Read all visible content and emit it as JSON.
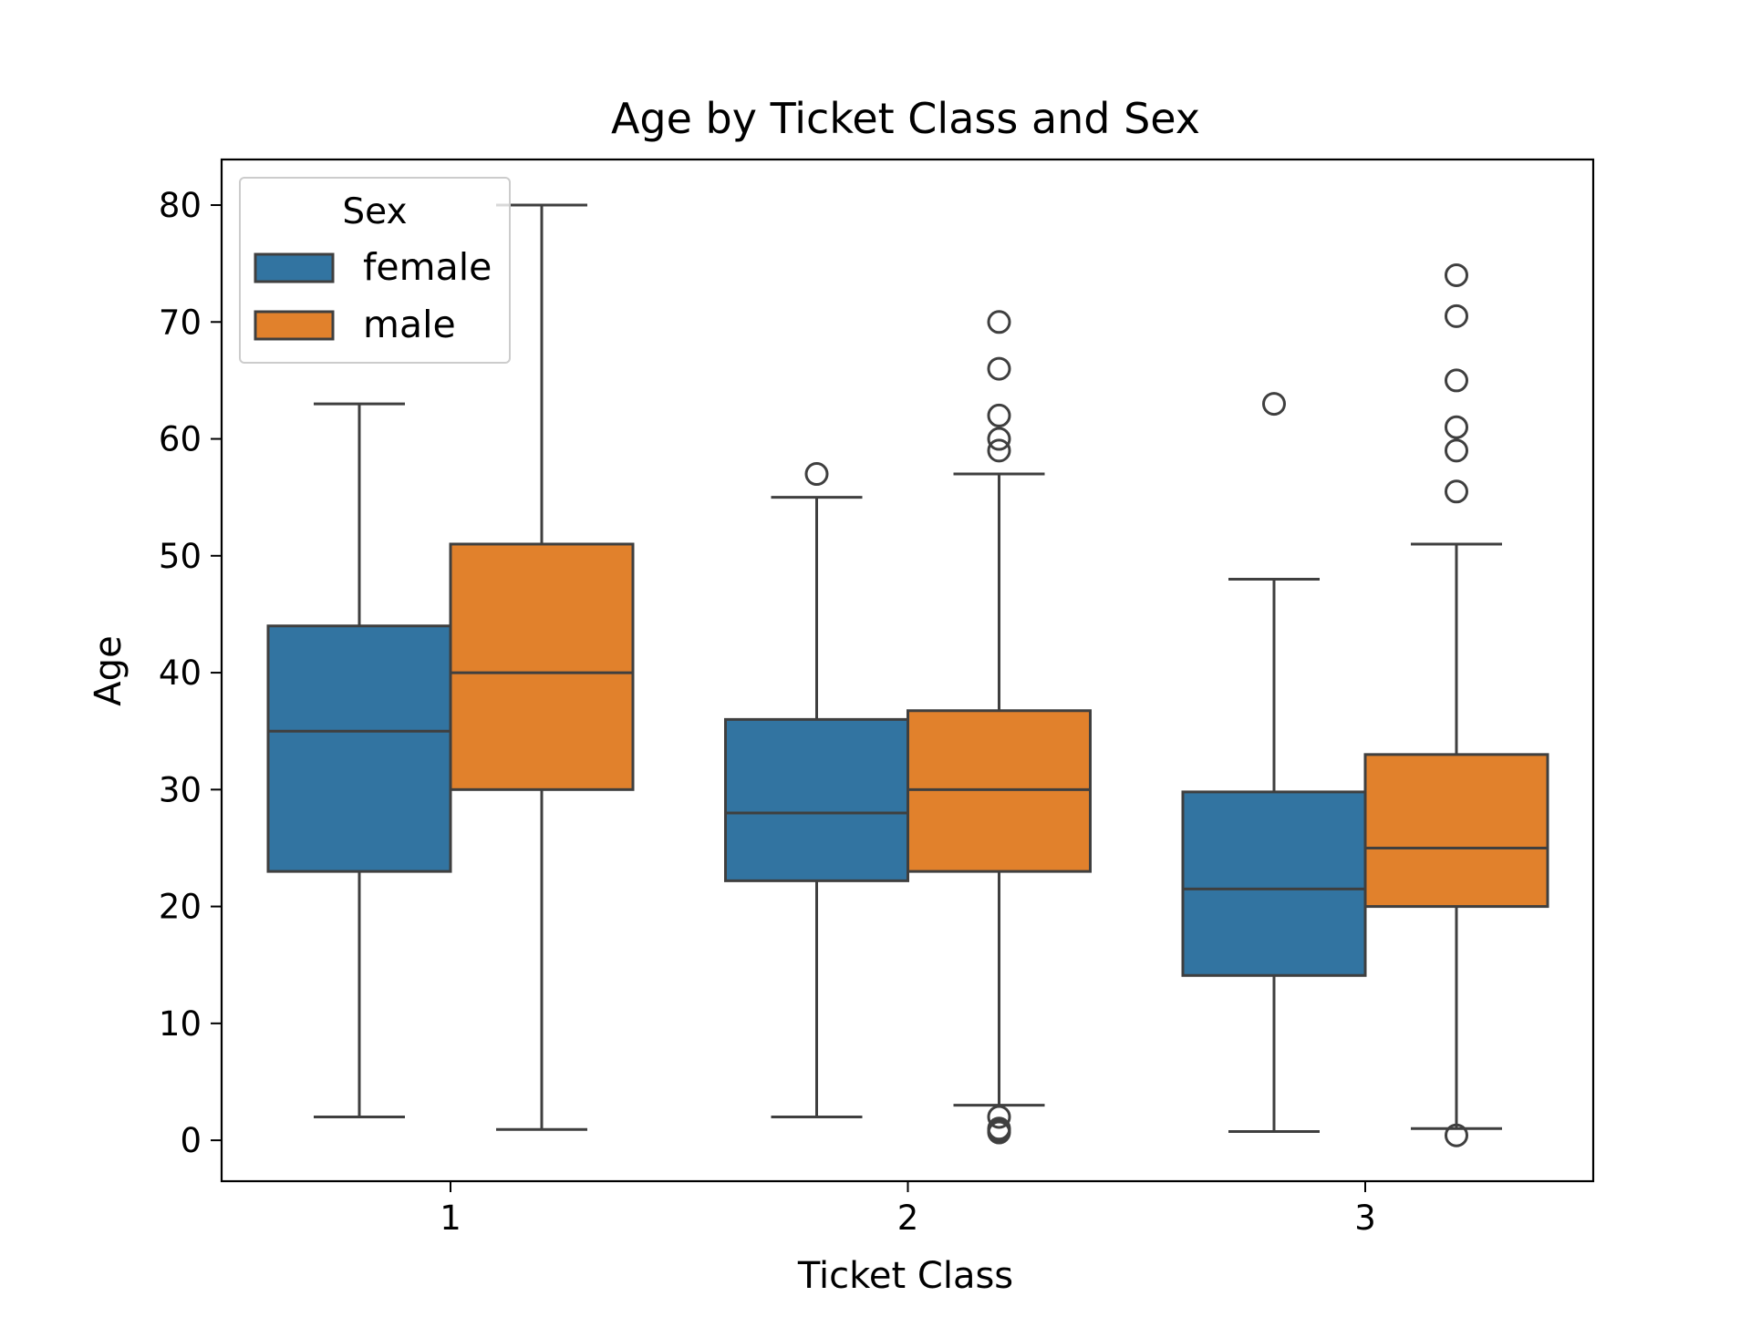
{
  "chart_data": {
    "type": "box",
    "title": "Age by Ticket Class and Sex",
    "xlabel": "Ticket Class",
    "ylabel": "Age",
    "categories": [
      "1",
      "2",
      "3"
    ],
    "ylim": [
      -3.5,
      83.9
    ],
    "yticks": [
      0,
      10,
      20,
      30,
      40,
      50,
      60,
      70,
      80
    ],
    "grid": false,
    "legend": {
      "title": "Sex",
      "position": "top-left"
    },
    "series": [
      {
        "name": "female",
        "color": "#3274a1",
        "boxes": [
          {
            "whisker_low": 2,
            "q1": 23,
            "median": 35,
            "q3": 44,
            "whisker_high": 63,
            "outliers": []
          },
          {
            "whisker_low": 2,
            "q1": 22.2,
            "median": 28,
            "q3": 36,
            "whisker_high": 55,
            "outliers": [
              57
            ]
          },
          {
            "whisker_low": 0.75,
            "q1": 14.1,
            "median": 21.5,
            "q3": 29.8,
            "whisker_high": 48,
            "outliers": [
              63
            ]
          }
        ]
      },
      {
        "name": "male",
        "color": "#e1812c",
        "boxes": [
          {
            "whisker_low": 0.92,
            "q1": 30,
            "median": 40,
            "q3": 51,
            "whisker_high": 80,
            "outliers": []
          },
          {
            "whisker_low": 3,
            "q1": 23,
            "median": 30,
            "q3": 36.75,
            "whisker_high": 57,
            "outliers": [
              0.67,
              0.83,
              1,
              2,
              59,
              60,
              62,
              66,
              70
            ]
          },
          {
            "whisker_low": 1,
            "q1": 20,
            "median": 25,
            "q3": 33,
            "whisker_high": 51,
            "outliers": [
              0.42,
              55.5,
              59,
              61,
              65,
              70.5,
              74
            ]
          }
        ]
      }
    ]
  }
}
